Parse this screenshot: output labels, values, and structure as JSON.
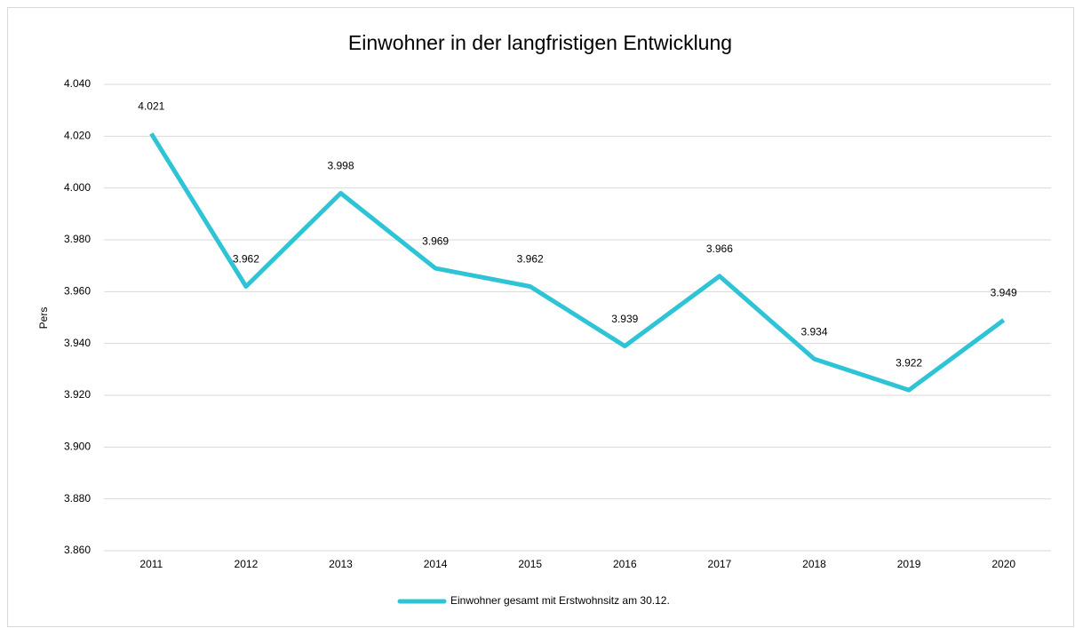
{
  "chart_data": {
    "type": "line",
    "title": "Einwohner in der langfristigen Entwicklung",
    "y_label": "Pers",
    "categories": [
      "2011",
      "2012",
      "2013",
      "2014",
      "2015",
      "2016",
      "2017",
      "2018",
      "2019",
      "2020"
    ],
    "series": [
      {
        "name": "Einwohner gesamt mit Erstwohnsitz am 30.12.",
        "color": "#2ec4d6",
        "values": [
          4021,
          3962,
          3998,
          3969,
          3962,
          3939,
          3966,
          3934,
          3922,
          3949
        ],
        "value_labels": [
          "4.021",
          "3.962",
          "3.998",
          "3.969",
          "3.962",
          "3.939",
          "3.966",
          "3.934",
          "3.922",
          "3.949"
        ]
      }
    ],
    "ylim": [
      3860,
      4040
    ],
    "yticks": [
      {
        "value": 3860,
        "label": "3.860"
      },
      {
        "value": 3880,
        "label": "3.880"
      },
      {
        "value": 3900,
        "label": "3.900"
      },
      {
        "value": 3920,
        "label": "3.920"
      },
      {
        "value": 3940,
        "label": "3.940"
      },
      {
        "value": 3960,
        "label": "3.960"
      },
      {
        "value": 3980,
        "label": "3.980"
      },
      {
        "value": 4000,
        "label": "4.000"
      },
      {
        "value": 4020,
        "label": "4.020"
      },
      {
        "value": 4040,
        "label": "4.040"
      }
    ],
    "grid": true,
    "legend": "bottom"
  }
}
